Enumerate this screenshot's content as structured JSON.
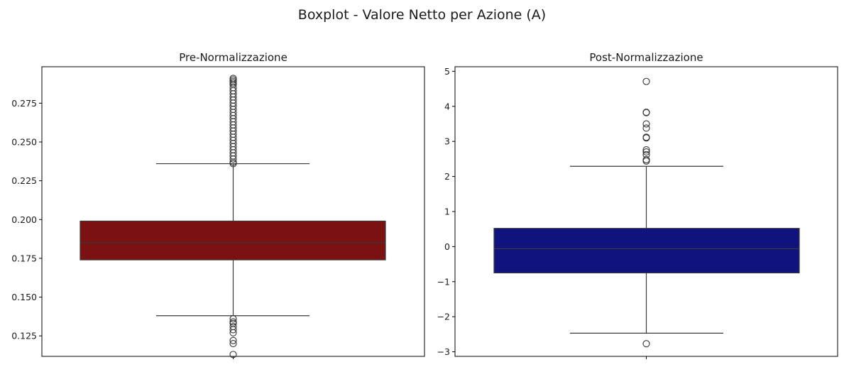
{
  "figure": {
    "title": "Boxplot - Valore Netto per Azione (A)"
  },
  "chart_data": [
    {
      "type": "box",
      "title": "Pre-Normalizzazione",
      "xlabel": "",
      "ylabel": "",
      "color": "#7b1111",
      "ylim": [
        0.1118,
        0.2985
      ],
      "yticks": [
        0.125,
        0.15,
        0.175,
        0.2,
        0.225,
        0.25,
        0.275
      ],
      "ytick_labels": [
        "0.125",
        "0.150",
        "0.175",
        "0.200",
        "0.225",
        "0.250",
        "0.275"
      ],
      "box": {
        "whisker_low": 0.138,
        "q1": 0.174,
        "median": 0.185,
        "q3": 0.199,
        "whisker_high": 0.236
      },
      "outliers": [
        0.291,
        0.29,
        0.289,
        0.288,
        0.287,
        0.285,
        0.283,
        0.281,
        0.279,
        0.277,
        0.275,
        0.273,
        0.271,
        0.269,
        0.267,
        0.265,
        0.263,
        0.261,
        0.259,
        0.257,
        0.255,
        0.253,
        0.251,
        0.249,
        0.247,
        0.245,
        0.243,
        0.241,
        0.239,
        0.237,
        0.236,
        0.136,
        0.134,
        0.133,
        0.131,
        0.129,
        0.127,
        0.122,
        0.12,
        0.113
      ]
    },
    {
      "type": "box",
      "title": "Post-Normalizzazione",
      "xlabel": "",
      "ylabel": "",
      "color": "#10127d",
      "ylim": [
        -3.13,
        5.13
      ],
      "yticks": [
        -3,
        -2,
        -1,
        0,
        1,
        2,
        3,
        4,
        5
      ],
      "ytick_labels": [
        "−3",
        "−2",
        "−1",
        "0",
        "1",
        "2",
        "3",
        "4",
        "5"
      ],
      "box": {
        "whisker_low": -2.47,
        "q1": -0.75,
        "median": -0.06,
        "q3": 0.52,
        "whisker_high": 2.29
      },
      "outliers": [
        4.71,
        3.83,
        3.82,
        3.5,
        3.38,
        3.12,
        3.1,
        2.76,
        2.7,
        2.62,
        2.48,
        2.44,
        -2.77
      ]
    }
  ]
}
